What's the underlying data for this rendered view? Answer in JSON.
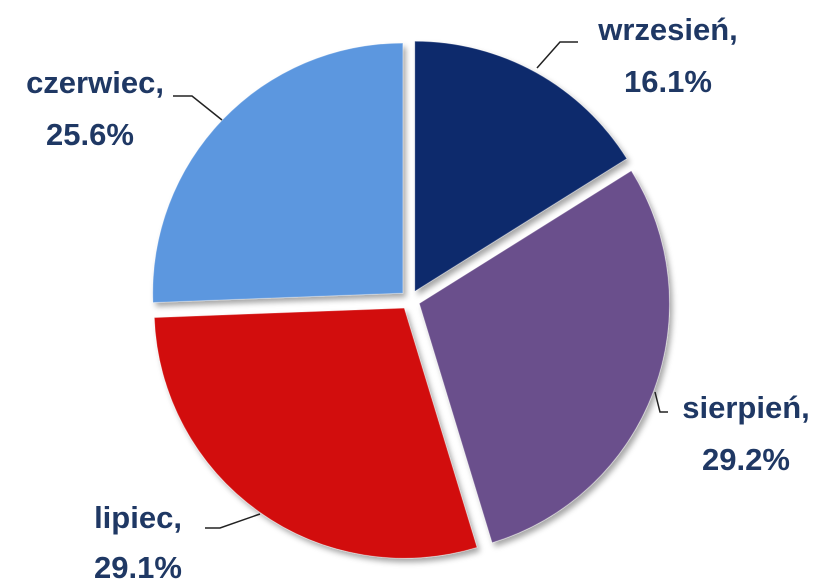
{
  "chart_data": {
    "type": "pie",
    "categories": [
      "wrzesień,",
      "sierpień,",
      "lipiec,",
      "czerwiec,"
    ],
    "values": [
      16.1,
      29.2,
      29.1,
      25.6
    ],
    "value_labels": [
      "16.1%",
      "29.2%",
      "29.1%",
      "25.6%"
    ],
    "colors": [
      "#0e2a6c",
      "#6b4f8c",
      "#d20b0b",
      "#5c97df"
    ]
  }
}
